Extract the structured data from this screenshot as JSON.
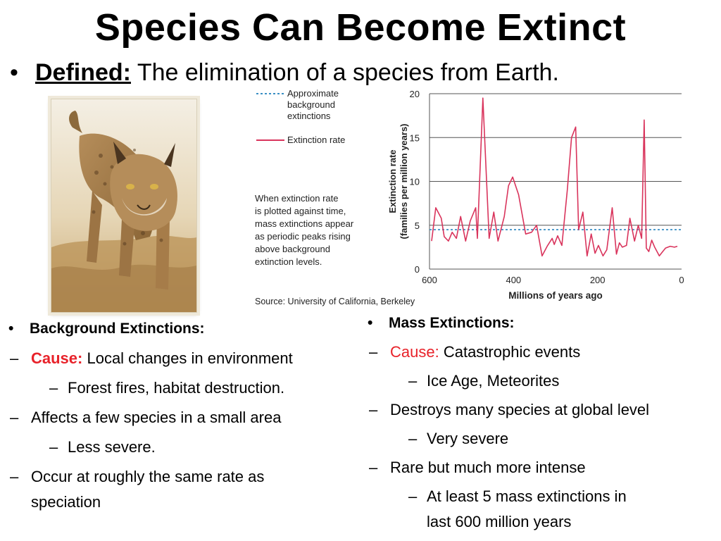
{
  "title": "Species Can Become Extinct",
  "definition": {
    "term": "Defined:",
    "text": "The elimination of a species from Earth."
  },
  "figure": {
    "legend_background": [
      "Approximate",
      "background",
      "extinctions"
    ],
    "legend_rate": "Extinction rate",
    "note": [
      "When extinction rate",
      "is plotted against time,",
      "mass extinctions appear",
      "as periodic peaks rising",
      "above background",
      "extinction levels."
    ],
    "source": "Source: University of California, Berkeley"
  },
  "chart_data": {
    "type": "line",
    "xlabel": "Millions of years ago",
    "ylabel_lines": [
      "Extinction rate",
      "(families per million years)"
    ],
    "xlim": [
      600,
      0
    ],
    "ylim": [
      0,
      20
    ],
    "x_ticks": [
      "600",
      "400",
      "200",
      "0"
    ],
    "x_tick_values": [
      600,
      400,
      200,
      0
    ],
    "y_ticks": [
      "0",
      "5",
      "10",
      "15",
      "20"
    ],
    "y_tick_values": [
      0,
      5,
      10,
      15,
      20
    ],
    "background_level": 4.5,
    "series": [
      {
        "name": "Extinction rate",
        "color": "#d9345c",
        "x": [
          595,
          585,
          572,
          565,
          555,
          546,
          536,
          526,
          514,
          503,
          490,
          486,
          473,
          458,
          447,
          437,
          422,
          412,
          402,
          388,
          371,
          357,
          345,
          332,
          320,
          308,
          303,
          295,
          285,
          272,
          262,
          252,
          245,
          235,
          225,
          215,
          206,
          198,
          187,
          178,
          165,
          155,
          148,
          141,
          131,
          123,
          112,
          103,
          95,
          89,
          84,
          78,
          71,
          64,
          53,
          45,
          38,
          27,
          17,
          10
        ],
        "y": [
          3.2,
          7.0,
          5.8,
          3.7,
          3.2,
          4.2,
          3.5,
          6.0,
          3.2,
          5.5,
          7.0,
          3.5,
          19.5,
          3.5,
          6.5,
          3.2,
          6.0,
          9.5,
          10.5,
          8.5,
          4.0,
          4.2,
          5.0,
          1.5,
          2.6,
          3.5,
          2.8,
          3.8,
          2.7,
          9.0,
          15.0,
          16.2,
          4.5,
          6.5,
          1.5,
          4.0,
          1.8,
          2.7,
          1.5,
          2.2,
          7.0,
          1.7,
          3.0,
          2.5,
          2.7,
          5.8,
          3.2,
          5.0,
          3.5,
          17.0,
          2.4,
          2.0,
          3.3,
          2.5,
          1.5,
          2.0,
          2.4,
          2.6,
          2.5,
          2.6
        ]
      }
    ]
  },
  "left_col": [
    {
      "level": 1,
      "marker": "•",
      "parts": [
        {
          "text": "Background Extinctions:",
          "style": "bold"
        }
      ]
    },
    {
      "level": 2,
      "marker": "–",
      "marker_style": "red",
      "parts": [
        {
          "text": "Cause:",
          "style": "redbold"
        },
        {
          "text": " Local changes in environment",
          "style": ""
        }
      ]
    },
    {
      "level": 3,
      "marker": "–",
      "parts": [
        {
          "text": "Forest fires, habitat destruction.",
          "style": ""
        }
      ]
    },
    {
      "level": 2,
      "marker": "–",
      "parts": [
        {
          "text": "Affects a few species in a small area",
          "style": ""
        }
      ]
    },
    {
      "level": 3,
      "marker": "–",
      "parts": [
        {
          "text": "Less severe.",
          "style": ""
        }
      ]
    },
    {
      "level": 2,
      "marker": "–",
      "parts": [
        {
          "text": "Occur at roughly the same rate as",
          "style": ""
        }
      ]
    },
    {
      "level": 2,
      "marker": "",
      "parts": [
        {
          "text": "speciation",
          "style": ""
        }
      ]
    }
  ],
  "right_col": [
    {
      "level": 1,
      "marker": "•",
      "parts": [
        {
          "text": "Mass Extinctions:",
          "style": "bold"
        }
      ]
    },
    {
      "level": 2,
      "marker": "–",
      "marker_style": "red",
      "parts": [
        {
          "text": "Cause:",
          "style": "red"
        },
        {
          "text": " Catastrophic events",
          "style": ""
        }
      ]
    },
    {
      "level": 3,
      "marker": "–",
      "parts": [
        {
          "text": "Ice Age, Meteorites",
          "style": ""
        }
      ]
    },
    {
      "level": 2,
      "marker": "–",
      "parts": [
        {
          "text": "Destroys many species at global level",
          "style": ""
        }
      ]
    },
    {
      "level": 3,
      "marker": "–",
      "parts": [
        {
          "text": "Very severe",
          "style": ""
        }
      ]
    },
    {
      "level": 2,
      "marker": "–",
      "parts": [
        {
          "text": "Rare but much more intense",
          "style": ""
        }
      ]
    },
    {
      "level": 3,
      "marker": "–",
      "parts": [
        {
          "text": "At least 5 mass extinctions in",
          "style": ""
        }
      ]
    },
    {
      "level": 3,
      "marker": "",
      "parts": [
        {
          "text": "last 600 million years",
          "style": ""
        }
      ]
    }
  ]
}
